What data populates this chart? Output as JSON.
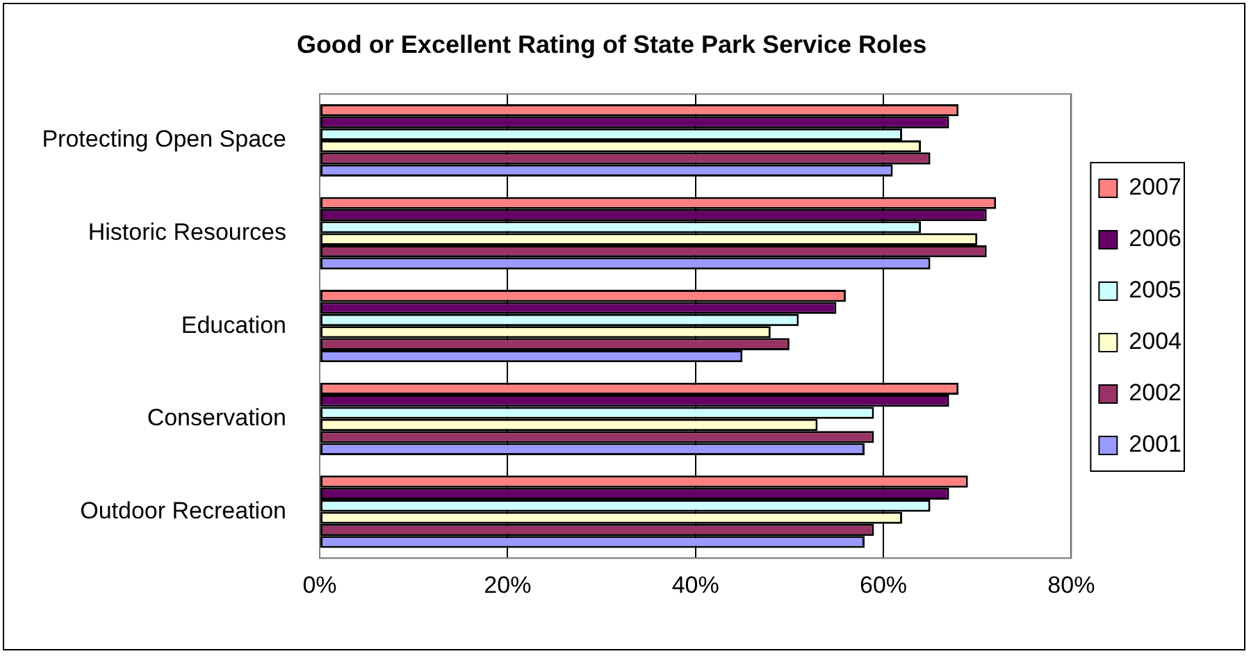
{
  "chart_data": {
    "type": "bar",
    "orientation": "horizontal",
    "title": "Good or Excellent Rating of State Park Service Roles",
    "categories": [
      "Protecting Open Space",
      "Historic Resources",
      "Education",
      "Conservation",
      "Outdoor Recreation"
    ],
    "series": [
      {
        "name": "2007",
        "color": "#ff8080",
        "values": [
          68,
          72,
          56,
          68,
          69
        ]
      },
      {
        "name": "2006",
        "color": "#660066",
        "values": [
          67,
          71,
          55,
          67,
          67
        ]
      },
      {
        "name": "2005",
        "color": "#ccffff",
        "values": [
          62,
          64,
          51,
          59,
          65
        ]
      },
      {
        "name": "2004",
        "color": "#ffffcc",
        "values": [
          64,
          70,
          48,
          53,
          62
        ]
      },
      {
        "name": "2002",
        "color": "#993366",
        "values": [
          65,
          71,
          50,
          59,
          59
        ]
      },
      {
        "name": "2001",
        "color": "#9999ff",
        "values": [
          61,
          65,
          45,
          58,
          58
        ]
      }
    ],
    "xlim": [
      0,
      80
    ],
    "xticks": [
      {
        "value": 0,
        "label": "0%"
      },
      {
        "value": 20,
        "label": "20%"
      },
      {
        "value": 40,
        "label": "40%"
      },
      {
        "value": 60,
        "label": "60%"
      },
      {
        "value": 80,
        "label": "80%"
      }
    ],
    "grid": "x",
    "legend": "right"
  }
}
